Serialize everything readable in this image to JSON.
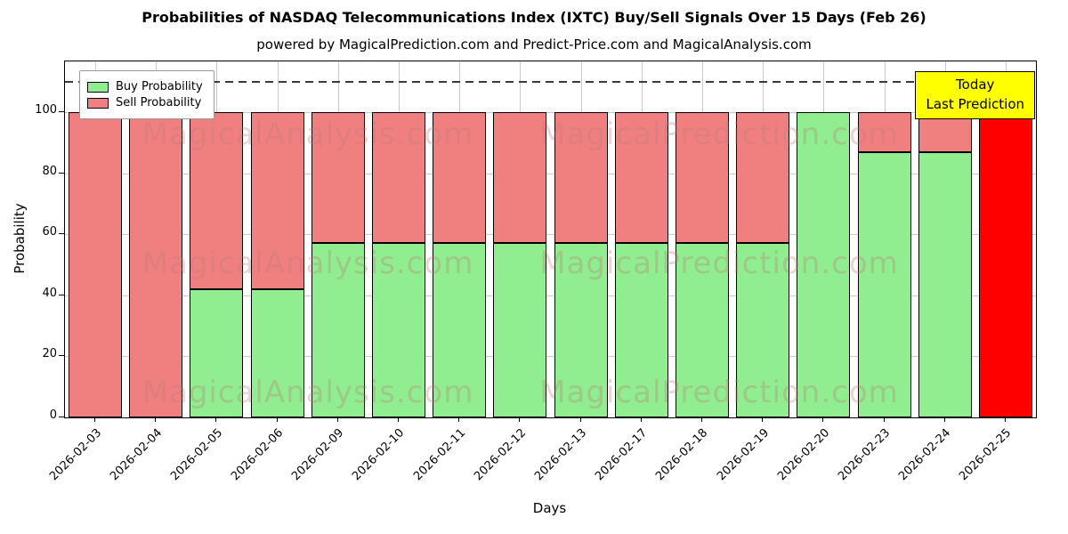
{
  "chart_data": {
    "type": "bar",
    "stacked": true,
    "title": "Probabilities of NASDAQ Telecommunications Index (IXTC) Buy/Sell Signals Over 15 Days (Feb 26)",
    "subtitle": "powered by MagicalPrediction.com and Predict-Price.com and MagicalAnalysis.com",
    "xlabel": "Days",
    "ylabel": "Probability",
    "ylim": [
      0,
      116.6
    ],
    "yticks": [
      0,
      20,
      40,
      60,
      80,
      100
    ],
    "grid": true,
    "dashed_line_y": 110,
    "bar_width_ratio": 0.88,
    "edge_color": "#000000",
    "categories": [
      "2026-02-03",
      "2026-02-04",
      "2026-02-05",
      "2026-02-06",
      "2026-02-09",
      "2026-02-10",
      "2026-02-11",
      "2026-02-12",
      "2026-02-13",
      "2026-02-17",
      "2026-02-18",
      "2026-02-19",
      "2026-02-20",
      "2026-02-23",
      "2026-02-24",
      "2026-02-25"
    ],
    "series": [
      {
        "name": "Buy Probability",
        "color": "#90EE90",
        "values": [
          0,
          0,
          42,
          42,
          57,
          57,
          57,
          57,
          57,
          57,
          57,
          57,
          100,
          87,
          87,
          0
        ]
      },
      {
        "name": "Sell Probability",
        "color": "#F08080",
        "values": [
          100,
          100,
          58,
          58,
          43,
          43,
          43,
          43,
          43,
          43,
          43,
          43,
          0,
          13,
          13,
          0
        ]
      }
    ],
    "today_bar": {
      "category": "2026-02-25",
      "value": 100,
      "color": "#FF0000"
    },
    "legend": {
      "position": "upper left",
      "entries": [
        {
          "label": "Buy Probability",
          "color": "#90EE90"
        },
        {
          "label": "Sell Probability",
          "color": "#F08080"
        }
      ]
    },
    "annotation": {
      "lines": [
        "Today",
        "Last Prediction"
      ],
      "bg_color": "#FFFF00"
    },
    "watermarks": {
      "texts": [
        "MagicalAnalysis.com",
        "MagicalPrediction.com"
      ],
      "color": "rgba(190,120,120,0.32)"
    }
  }
}
